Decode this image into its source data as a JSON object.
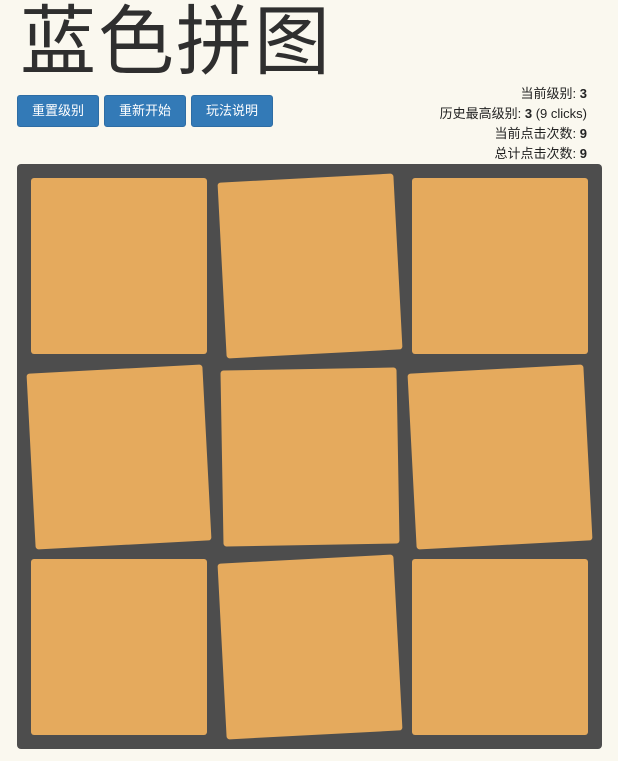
{
  "title": "蓝色拼图",
  "buttons": {
    "reset_level": "重置级别",
    "restart": "重新开始",
    "help": "玩法说明"
  },
  "stats": {
    "current_level_label": "当前级别: ",
    "current_level": "3",
    "best_level_label": "历史最高级别: ",
    "best_level": "3",
    "best_level_clicks": " (9 clicks)",
    "current_clicks_label": "当前点击次数: ",
    "current_clicks": "9",
    "total_clicks_label": "总计点击次数: ",
    "total_clicks": "9"
  },
  "board": {
    "rows": 3,
    "cols": 3,
    "tile_color": "#e5aa5d",
    "background_color": "#4d4d4d",
    "tiles": [
      {
        "row": 0,
        "col": 0,
        "rotation_deg": 0
      },
      {
        "row": 0,
        "col": 1,
        "rotation_deg": -3
      },
      {
        "row": 0,
        "col": 2,
        "rotation_deg": 0
      },
      {
        "row": 1,
        "col": 0,
        "rotation_deg": -3
      },
      {
        "row": 1,
        "col": 1,
        "rotation_deg": -1
      },
      {
        "row": 1,
        "col": 2,
        "rotation_deg": -3
      },
      {
        "row": 2,
        "col": 0,
        "rotation_deg": 0
      },
      {
        "row": 2,
        "col": 1,
        "rotation_deg": -3
      },
      {
        "row": 2,
        "col": 2,
        "rotation_deg": 0
      }
    ]
  }
}
